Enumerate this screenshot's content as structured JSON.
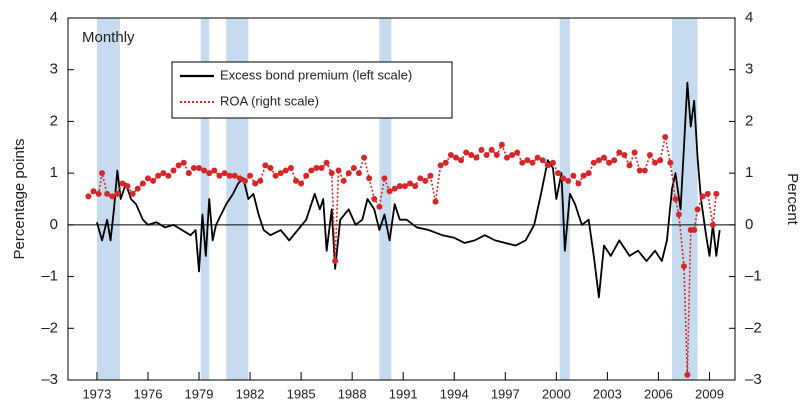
{
  "chart_data": {
    "type": "line",
    "annotation": "Monthly",
    "y_label": "Percentage points",
    "y2_label": "Percent",
    "xlim": [
      1971.3,
      2010.5
    ],
    "xticks": [
      1973,
      1976,
      1979,
      1982,
      1985,
      1988,
      1991,
      1994,
      1997,
      2000,
      2003,
      2006,
      2009
    ],
    "ylim": [
      -3,
      4
    ],
    "yticks": [
      {
        "value": -3,
        "label": "–3"
      },
      {
        "value": -2,
        "label": "–2"
      },
      {
        "value": -1,
        "label": "–1"
      },
      0,
      1,
      2,
      3,
      4
    ],
    "y2lim": [
      -3,
      4
    ],
    "y2ticks": [
      {
        "value": -3,
        "label": "–3"
      },
      {
        "value": -2,
        "label": "–2"
      },
      {
        "value": -1,
        "label": "–1"
      },
      0,
      1,
      2,
      3,
      4
    ],
    "shaded_periods": [
      [
        1973.0,
        1974.35
      ],
      [
        1979.1,
        1979.6
      ],
      [
        1980.6,
        1981.9
      ],
      [
        1989.6,
        1990.3
      ],
      [
        2000.2,
        2000.8
      ],
      [
        2006.8,
        2008.3
      ]
    ],
    "shade_color": "#c6dbef",
    "series": [
      {
        "name": "Excess bond premium (left scale)",
        "color": "#000000",
        "style": "solid",
        "x": [
          1973.0,
          1973.3,
          1973.6,
          1973.8,
          1974.0,
          1974.2,
          1974.4,
          1974.7,
          1975.0,
          1975.3,
          1975.7,
          1976.0,
          1976.5,
          1977.0,
          1977.5,
          1978.0,
          1978.5,
          1978.8,
          1979.0,
          1979.2,
          1979.4,
          1979.6,
          1979.8,
          1980.0,
          1980.3,
          1980.6,
          1981.0,
          1981.3,
          1981.6,
          1981.9,
          1982.2,
          1982.5,
          1982.8,
          1983.2,
          1983.8,
          1984.3,
          1984.8,
          1985.3,
          1985.8,
          1986.1,
          1986.3,
          1986.5,
          1986.8,
          1987.0,
          1987.3,
          1987.8,
          1988.2,
          1988.6,
          1988.9,
          1989.3,
          1989.6,
          1989.9,
          1990.2,
          1990.5,
          1990.8,
          1991.2,
          1991.8,
          1992.5,
          1993.3,
          1994.0,
          1994.6,
          1995.2,
          1995.8,
          1996.4,
          1997.0,
          1997.6,
          1998.2,
          1998.7,
          1999.1,
          1999.5,
          1999.8,
          2000.0,
          2000.3,
          2000.5,
          2000.8,
          2001.1,
          2001.5,
          2001.9,
          2002.2,
          2002.5,
          2002.8,
          2003.2,
          2003.7,
          2004.3,
          2004.8,
          2005.3,
          2005.8,
          2006.2,
          2006.5,
          2006.8,
          2007.0,
          2007.3,
          2007.5,
          2007.7,
          2007.9,
          2008.1,
          2008.3,
          2008.5,
          2008.8,
          2009.0,
          2009.2,
          2009.4,
          2009.6
        ],
        "values": [
          0.05,
          -0.3,
          0.1,
          -0.3,
          0.3,
          1.05,
          0.5,
          0.8,
          0.5,
          0.4,
          0.1,
          0.0,
          0.05,
          -0.05,
          0.0,
          -0.1,
          -0.2,
          -0.1,
          -0.9,
          0.2,
          -0.6,
          0.5,
          -0.3,
          0.0,
          0.2,
          0.4,
          0.6,
          0.8,
          0.9,
          0.5,
          0.6,
          0.2,
          -0.1,
          -0.2,
          -0.1,
          -0.3,
          -0.1,
          0.1,
          0.6,
          0.3,
          0.5,
          -0.5,
          0.3,
          -0.85,
          0.1,
          0.3,
          0.0,
          0.1,
          0.5,
          0.3,
          -0.1,
          0.2,
          -0.3,
          0.4,
          0.1,
          0.1,
          -0.05,
          -0.1,
          -0.2,
          -0.25,
          -0.35,
          -0.3,
          -0.2,
          -0.3,
          -0.35,
          -0.4,
          -0.3,
          0.0,
          0.6,
          1.25,
          1.1,
          0.5,
          1.0,
          -0.5,
          0.6,
          0.4,
          0.0,
          0.1,
          -0.6,
          -1.4,
          -0.4,
          -0.6,
          -0.3,
          -0.6,
          -0.5,
          -0.7,
          -0.5,
          -0.7,
          -0.3,
          0.7,
          1.0,
          0.3,
          1.5,
          2.75,
          1.9,
          2.4,
          1.3,
          0.5,
          -0.2,
          -0.6,
          0.0,
          -0.6,
          -0.1
        ]
      },
      {
        "name": "ROA (right scale)",
        "color": "#d62728",
        "style": "dotted",
        "axis": "y2",
        "x": [
          1972.5,
          1972.8,
          1973.1,
          1973.3,
          1973.6,
          1973.9,
          1974.2,
          1974.5,
          1974.8,
          1975.1,
          1975.4,
          1975.7,
          1976.0,
          1976.3,
          1976.6,
          1976.9,
          1977.2,
          1977.5,
          1977.8,
          1978.1,
          1978.4,
          1978.7,
          1979.0,
          1979.3,
          1979.6,
          1979.9,
          1980.2,
          1980.5,
          1980.8,
          1981.1,
          1981.4,
          1981.7,
          1982.0,
          1982.3,
          1982.6,
          1982.9,
          1983.2,
          1983.5,
          1983.8,
          1984.1,
          1984.4,
          1984.7,
          1985.0,
          1985.3,
          1985.6,
          1985.9,
          1986.2,
          1986.5,
          1986.8,
          1987.0,
          1987.2,
          1987.5,
          1987.8,
          1988.1,
          1988.4,
          1988.7,
          1989.0,
          1989.3,
          1989.6,
          1989.9,
          1990.2,
          1990.5,
          1990.8,
          1991.1,
          1991.4,
          1991.7,
          1992.0,
          1992.3,
          1992.6,
          1992.9,
          1993.2,
          1993.5,
          1993.8,
          1994.1,
          1994.4,
          1994.7,
          1995.0,
          1995.3,
          1995.6,
          1995.9,
          1996.2,
          1996.5,
          1996.8,
          1997.1,
          1997.4,
          1997.7,
          1998.0,
          1998.3,
          1998.6,
          1998.9,
          1999.2,
          1999.5,
          1999.8,
          2000.1,
          2000.4,
          2000.7,
          2001.0,
          2001.3,
          2001.6,
          2001.9,
          2002.2,
          2002.5,
          2002.8,
          2003.1,
          2003.4,
          2003.7,
          2004.0,
          2004.3,
          2004.6,
          2004.9,
          2005.2,
          2005.5,
          2005.8,
          2006.1,
          2006.4,
          2006.7,
          2007.0,
          2007.2,
          2007.5,
          2007.7,
          2007.9,
          2008.1,
          2008.3,
          2008.6,
          2008.9,
          2009.2,
          2009.4
        ],
        "values": [
          0.55,
          0.65,
          0.6,
          1.0,
          0.6,
          0.55,
          0.6,
          0.8,
          0.75,
          0.6,
          0.7,
          0.8,
          0.9,
          0.85,
          0.95,
          1.0,
          0.95,
          1.05,
          1.15,
          1.2,
          1.0,
          1.1,
          1.1,
          1.05,
          1.0,
          1.05,
          0.95,
          1.0,
          0.95,
          0.95,
          0.9,
          0.85,
          0.95,
          0.8,
          0.85,
          1.15,
          1.1,
          0.95,
          1.0,
          1.05,
          1.1,
          0.85,
          0.8,
          0.95,
          1.05,
          1.1,
          1.1,
          1.2,
          1.0,
          -0.7,
          1.05,
          0.85,
          1.0,
          1.1,
          1.0,
          1.3,
          0.9,
          0.5,
          0.35,
          0.9,
          0.65,
          0.7,
          0.75,
          0.75,
          0.8,
          0.75,
          0.9,
          0.85,
          0.95,
          0.45,
          1.15,
          1.2,
          1.35,
          1.3,
          1.25,
          1.4,
          1.35,
          1.3,
          1.45,
          1.35,
          1.45,
          1.35,
          1.55,
          1.3,
          1.35,
          1.4,
          1.2,
          1.25,
          1.2,
          1.3,
          1.25,
          1.15,
          1.2,
          1.0,
          0.9,
          0.85,
          0.95,
          0.8,
          0.95,
          1.0,
          1.2,
          1.25,
          1.3,
          1.2,
          1.25,
          1.4,
          1.35,
          1.15,
          1.4,
          1.05,
          1.05,
          1.35,
          1.2,
          1.25,
          1.7,
          1.2,
          0.5,
          0.2,
          -0.8,
          -2.9,
          -0.1,
          -0.1,
          0.3,
          0.55,
          0.6,
          0.0,
          0.6
        ]
      }
    ]
  }
}
